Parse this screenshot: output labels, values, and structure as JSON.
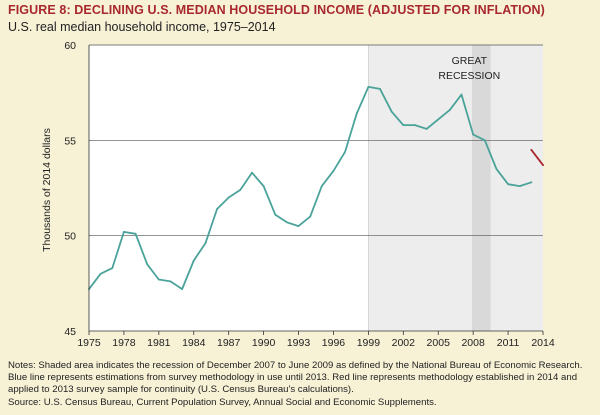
{
  "figure": {
    "title": "FIGURE 8: DECLINING U.S. MEDIAN HOUSEHOLD INCOME (ADJUSTED FOR INFLATION)",
    "subtitle": "U.S. real median household income, 1975–2014",
    "notes": "Notes: Shaded area indicates the recession of December 2007 to June 2009 as defined by the National Bureau of Economic Research. Blue line represents estimations from survey methodology in use until 2013. Red line represents methodology established in 2014 and applied to 2013 survey sample for continuity (U.S. Census Bureau's calculations).",
    "source": "Source: U.S. Census Bureau, Current Population Survey, Annual Social and Economic Supplements."
  },
  "colors": {
    "background": "#f7f1d6",
    "plot_background": "#ffffff",
    "shade_1999_2014": "#ededed",
    "recession_shade": "#d9d9d9",
    "old_method_line": "#4aa39a",
    "new_method_line": "#a8282d",
    "title": "#a8282d",
    "gridline": "#555555"
  },
  "chart_data": {
    "type": "line",
    "title": "FIGURE 8: DECLINING U.S. MEDIAN HOUSEHOLD INCOME (ADJUSTED FOR INFLATION)",
    "subtitle": "U.S. real median household income, 1975–2014",
    "xlabel": "",
    "ylabel": "Thousands of 2014 dollars",
    "xlim": [
      1975,
      2014
    ],
    "ylim": [
      45,
      60
    ],
    "xticks": [
      1975,
      1978,
      1981,
      1984,
      1987,
      1990,
      1993,
      1996,
      1999,
      2002,
      2005,
      2008,
      2011,
      2014
    ],
    "yticks": [
      45,
      50,
      55,
      60
    ],
    "grid": "horizontal",
    "legend": "none",
    "series": [
      {
        "color": "#4aa39a",
        "x": [
          1975,
          1976,
          1977,
          1978,
          1979,
          1980,
          1981,
          1982,
          1983,
          1984,
          1985,
          1986,
          1987,
          1988,
          1989,
          1990,
          1991,
          1992,
          1993,
          1994,
          1995,
          1996,
          1997,
          1998,
          1999,
          2000,
          2001,
          2002,
          2003,
          2004,
          2005,
          2006,
          2007,
          2008,
          2009,
          2010,
          2011,
          2012,
          2013
        ],
        "values": [
          47.2,
          48.0,
          48.3,
          50.2,
          50.1,
          48.5,
          47.7,
          47.6,
          47.2,
          48.7,
          49.6,
          51.4,
          52.0,
          52.4,
          53.3,
          52.6,
          51.1,
          50.7,
          50.5,
          51.0,
          52.6,
          53.4,
          54.4,
          56.4,
          57.8,
          57.7,
          56.5,
          55.8,
          55.8,
          55.6,
          56.1,
          56.6,
          57.4,
          55.3,
          55.0,
          53.5,
          52.7,
          52.6,
          52.8
        ]
      },
      {
        "color": "#a8282d",
        "x": [
          2013,
          2014
        ],
        "values": [
          54.5,
          53.7
        ]
      }
    ],
    "shaded_regions": [
      {
        "x_start": 1999,
        "x_end": 2014,
        "color": "#ededed"
      },
      {
        "x_start": 2007.9,
        "x_end": 2009.5,
        "color": "#d9d9d9",
        "label_lines": [
          "GREAT",
          "RECESSION"
        ]
      }
    ]
  }
}
